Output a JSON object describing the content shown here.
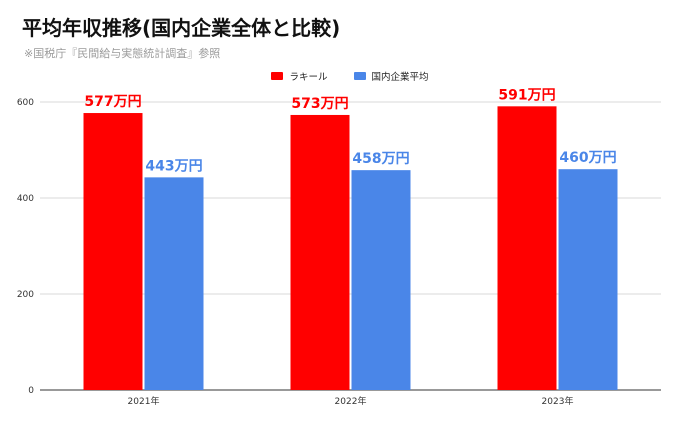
{
  "chart_data": {
    "type": "bar",
    "title": "平均年収推移(国内企業全体と比較)",
    "subtitle": "※国税庁『民間給与実態統計調査』参照",
    "categories": [
      "2021年",
      "2022年",
      "2023年"
    ],
    "series": [
      {
        "name": "ラキール",
        "values": [
          577,
          573,
          591
        ],
        "color": "#ff0000",
        "labels": [
          "577万円",
          "573万円",
          "591万円"
        ]
      },
      {
        "name": "国内企業平均",
        "values": [
          443,
          458,
          460
        ],
        "color": "#4a86e8",
        "labels": [
          "443万円",
          "458万円",
          "460万円"
        ]
      }
    ],
    "yticks": [
      "0",
      "200",
      "400",
      "600"
    ],
    "ylim": [
      0,
      600
    ],
    "grid": true,
    "legend_position": "top-center",
    "xlabel": "",
    "ylabel": ""
  }
}
